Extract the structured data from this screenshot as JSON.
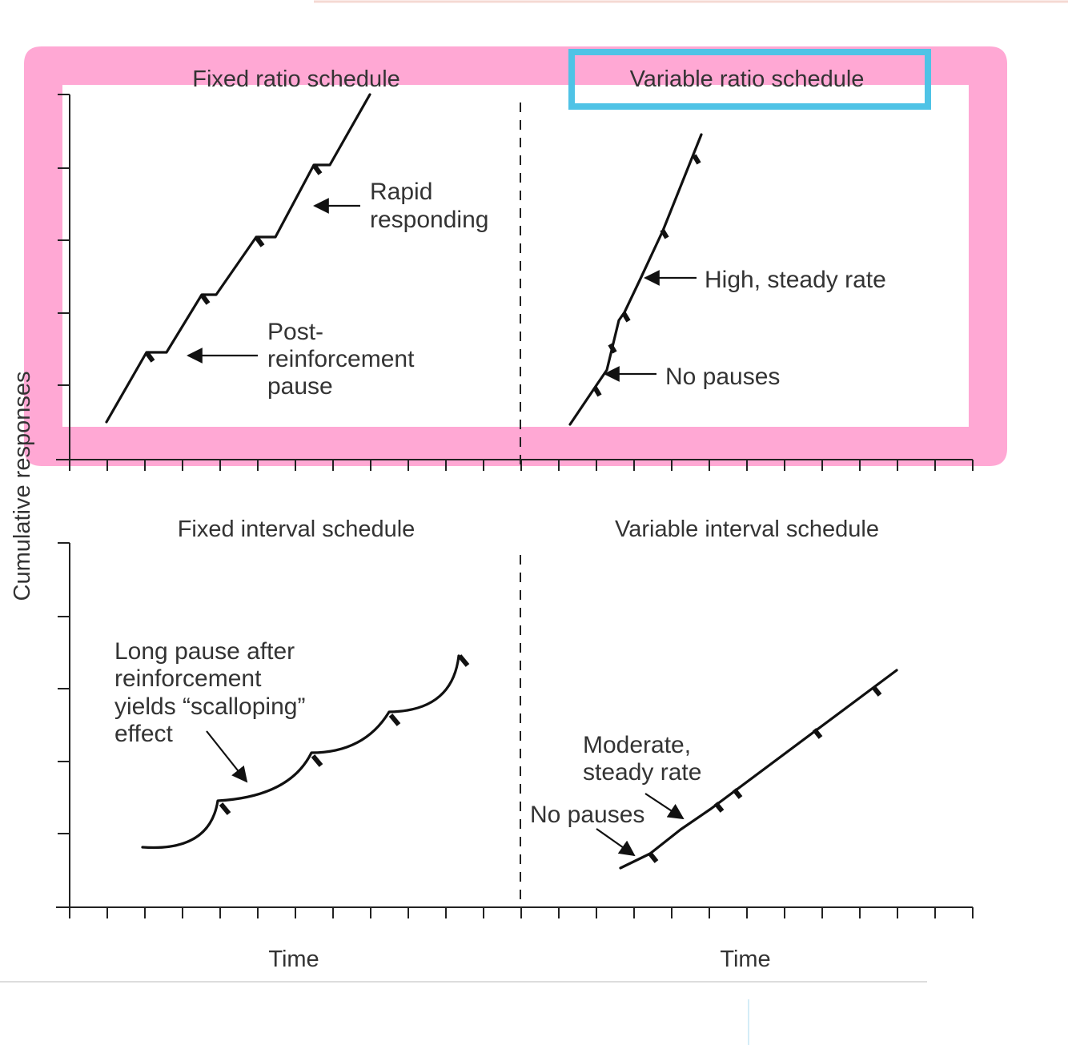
{
  "axis": {
    "ylabel": "Cumulative responses",
    "xlabel_left": "Time",
    "xlabel_right": "Time"
  },
  "panels": {
    "fixed_ratio": {
      "title": "Fixed ratio schedule",
      "annotation_1": [
        "Rapid",
        "responding"
      ],
      "annotation_2": [
        "Post-",
        "reinforcement",
        "pause"
      ]
    },
    "variable_ratio": {
      "title": "Variable ratio schedule",
      "annotation_1": "High, steady rate",
      "annotation_2": "No pauses"
    },
    "fixed_interval": {
      "title": "Fixed interval schedule",
      "annotation_1": [
        "Long pause after",
        "reinforcement",
        "yields “scalloping”",
        "effect"
      ]
    },
    "variable_interval": {
      "title": "Variable interval schedule",
      "annotation_1": [
        "Moderate,",
        "steady rate"
      ],
      "annotation_2": "No pauses"
    }
  },
  "highlights": {
    "top_row_color": "#ffa8d4",
    "title_box_color": "#4fc3e6"
  },
  "colors": {
    "faint_line": "#f5d9d3",
    "divider_line": "#dddddd"
  }
}
